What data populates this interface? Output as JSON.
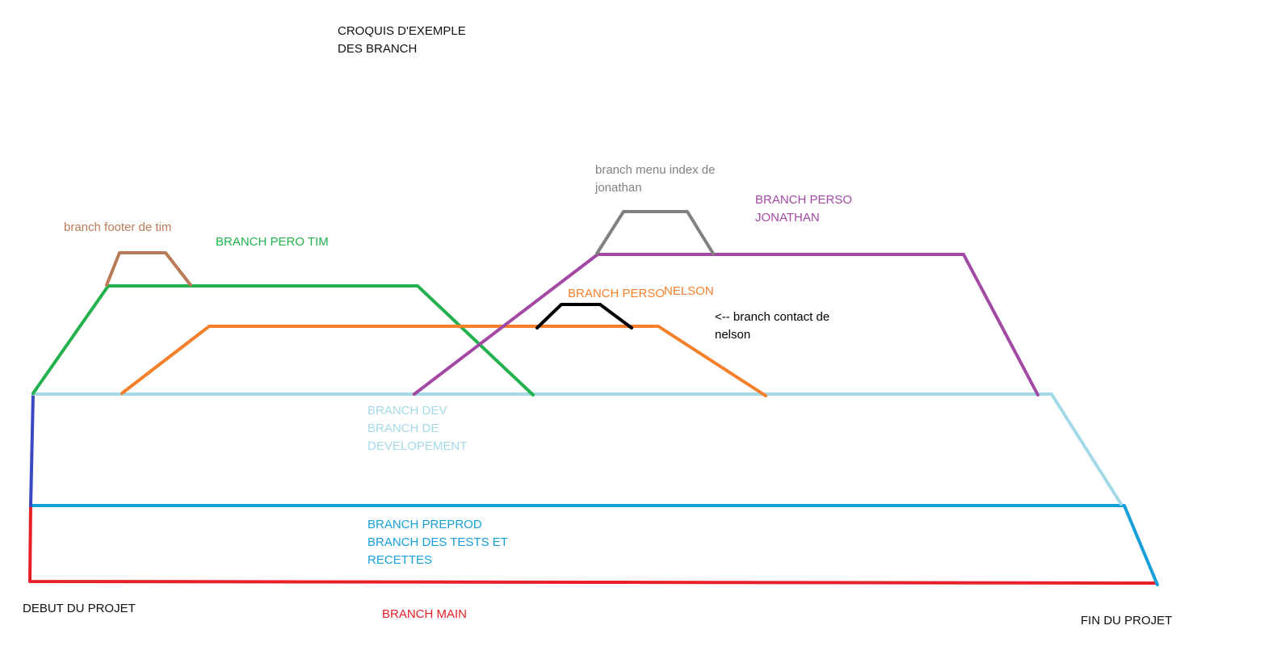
{
  "title": {
    "line1": "CROQUIS D'EXEMPLE",
    "line2": "DES BRANCH"
  },
  "branches": {
    "main": {
      "label": "BRANCH MAIN",
      "color": "#e8202a"
    },
    "preprod": {
      "line1": "BRANCH PREPROD",
      "line2": "BRANCH DES TESTS ET",
      "line3": "RECETTES",
      "color": "#179fd9"
    },
    "dev": {
      "line1": "BRANCH DEV",
      "line2": "BRANCH DE",
      "line3": "DEVELOPEMENT",
      "color": "#a4d9e7"
    },
    "start_connector": {
      "color": "#3a48c4"
    },
    "perso_tim": {
      "label": "BRANCH PERO TIM",
      "color": "#22b14c"
    },
    "footer_tim": {
      "label": "branch footer de tim",
      "color": "#b97a57"
    },
    "perso_nelson": {
      "label_a": "BRANCH PERSO",
      "label_b": "NELSON",
      "color": "#f57f2a"
    },
    "contact_nelson": {
      "line1": "<-- branch contact de",
      "line2": "nelson",
      "color": "#000000"
    },
    "perso_jonathan": {
      "line1": "BRANCH PERSO",
      "line2": "JONATHAN",
      "color": "#a349a4"
    },
    "menu_jonathan": {
      "line1": "branch menu index de",
      "line2": "jonathan",
      "color": "#808080"
    }
  },
  "markers": {
    "start": "DEBUT DU PROJET",
    "end": "FIN DU PROJET"
  },
  "text_colors": {
    "default": "#111111"
  }
}
